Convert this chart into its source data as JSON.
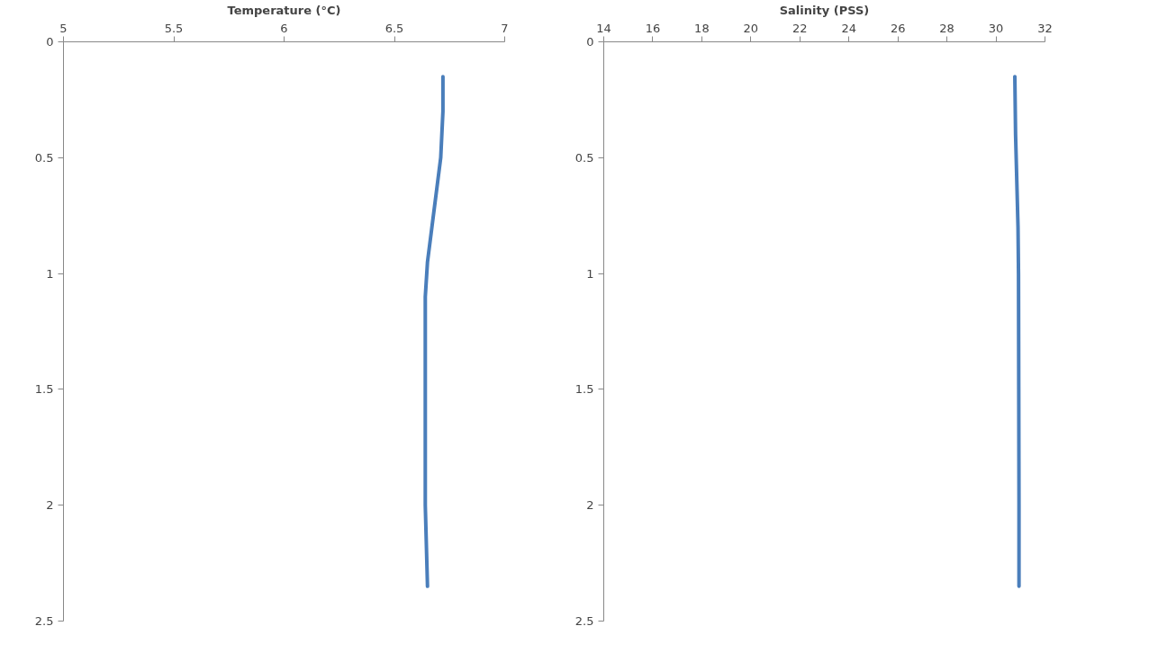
{
  "chart_data": [
    {
      "type": "line",
      "xlabel": "Temperature (°C)",
      "xlim": [
        5,
        7
      ],
      "xticks": [
        5,
        5.5,
        6,
        6.5,
        7
      ],
      "ylim": [
        2.5,
        0
      ],
      "yticks": [
        0,
        0.5,
        1,
        1.5,
        2,
        2.5
      ],
      "grid": false,
      "marker": "none",
      "series": [
        {
          "color": "#4a7ebb",
          "x": [
            6.72,
            6.72,
            6.71,
            6.69,
            6.67,
            6.65,
            6.64,
            6.64,
            6.64,
            6.64,
            6.65
          ],
          "values": [
            0.15,
            0.3,
            0.5,
            0.65,
            0.8,
            0.95,
            1.1,
            1.4,
            1.7,
            2.0,
            2.35
          ]
        }
      ]
    },
    {
      "type": "line",
      "xlabel": "Salinity (PSS)",
      "xlim": [
        14,
        32
      ],
      "xticks": [
        14,
        16,
        18,
        20,
        22,
        24,
        26,
        28,
        30,
        32
      ],
      "ylim": [
        2.5,
        0
      ],
      "yticks": [
        0,
        0.5,
        1,
        1.5,
        2,
        2.5
      ],
      "grid": false,
      "marker": "none",
      "series": [
        {
          "color": "#4a7ebb",
          "x": [
            30.77,
            30.8,
            30.85,
            30.9,
            30.92,
            30.93,
            30.94,
            30.94
          ],
          "values": [
            0.15,
            0.4,
            0.6,
            0.8,
            1.0,
            1.5,
            2.0,
            2.35
          ]
        }
      ]
    }
  ]
}
